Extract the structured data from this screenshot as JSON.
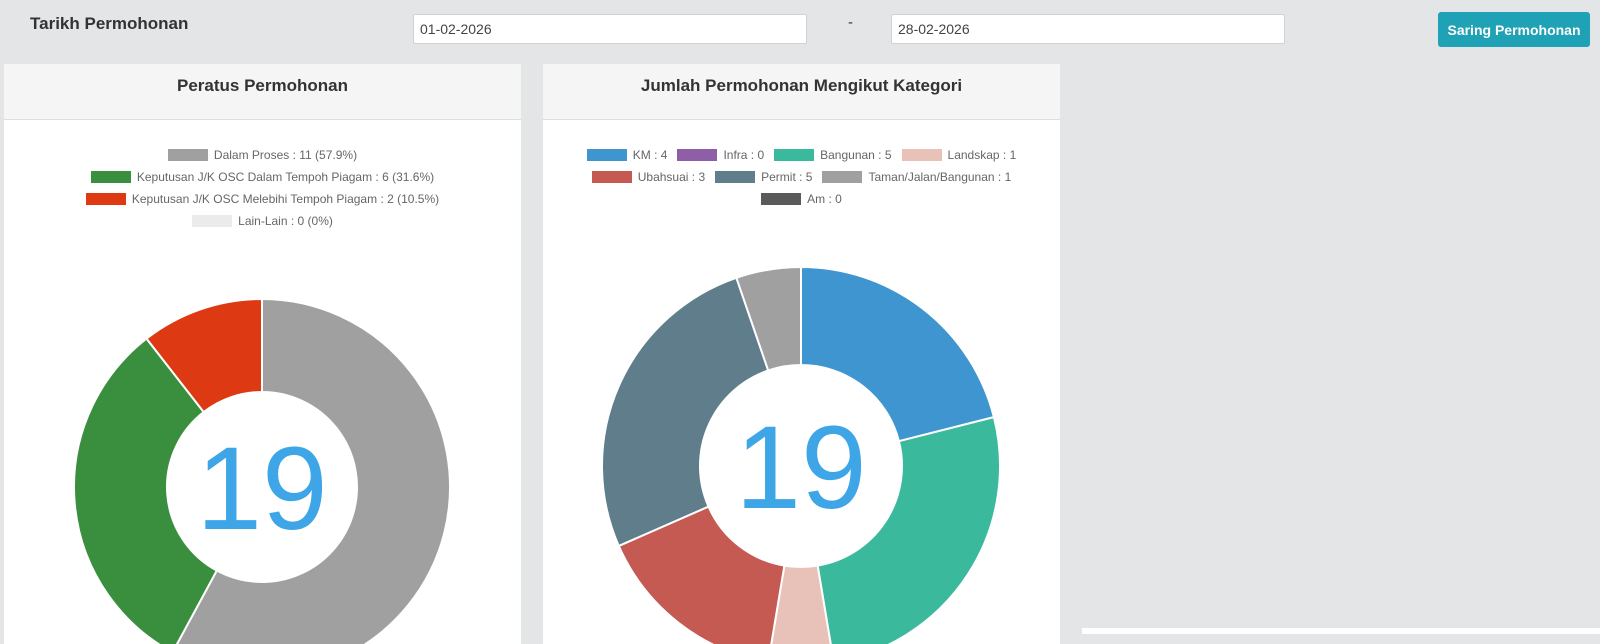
{
  "filter": {
    "label": "Tarikh Permohonan",
    "date_from": "01-02-2026",
    "separator": "-",
    "date_to": "28-02-2026",
    "button_label": "Saring Permohonan",
    "button_color": "#1fa2b5"
  },
  "chart_data": [
    {
      "type": "pie",
      "title": "Peratus Permohonan",
      "center_label": "19",
      "categories": [
        "Dalam Proses : 11 (57.9%)",
        "Keputusan J/K OSC Dalam Tempoh Piagam : 6 (31.6%)",
        "Keputusan J/K OSC Melebihi Tempoh Piagam : 2 (10.5%)",
        "Lain-Lain : 0 (0%)"
      ],
      "values": [
        11,
        6,
        2,
        0
      ],
      "colors": [
        "#a0a0a0",
        "#3a8f3e",
        "#dd3a14",
        "#ebebeb"
      ],
      "legend_position": "top"
    },
    {
      "type": "pie",
      "title": "Jumlah Permohonan Mengikut Kategori",
      "center_label": "19",
      "categories": [
        "KM : 4",
        "Infra : 0",
        "Bangunan : 5",
        "Landskap : 1",
        "Ubahsuai : 3",
        "Permit : 5",
        "Taman/Jalan/Bangunan : 1",
        "Am : 0"
      ],
      "values": [
        4,
        0,
        5,
        1,
        3,
        5,
        1,
        0
      ],
      "colors": [
        "#3e95d0",
        "#8e5ea6",
        "#3bb99d",
        "#e8c2b8",
        "#c55a52",
        "#607d8b",
        "#a0a0a0",
        "#5a5a5a"
      ],
      "legend_position": "top"
    }
  ]
}
